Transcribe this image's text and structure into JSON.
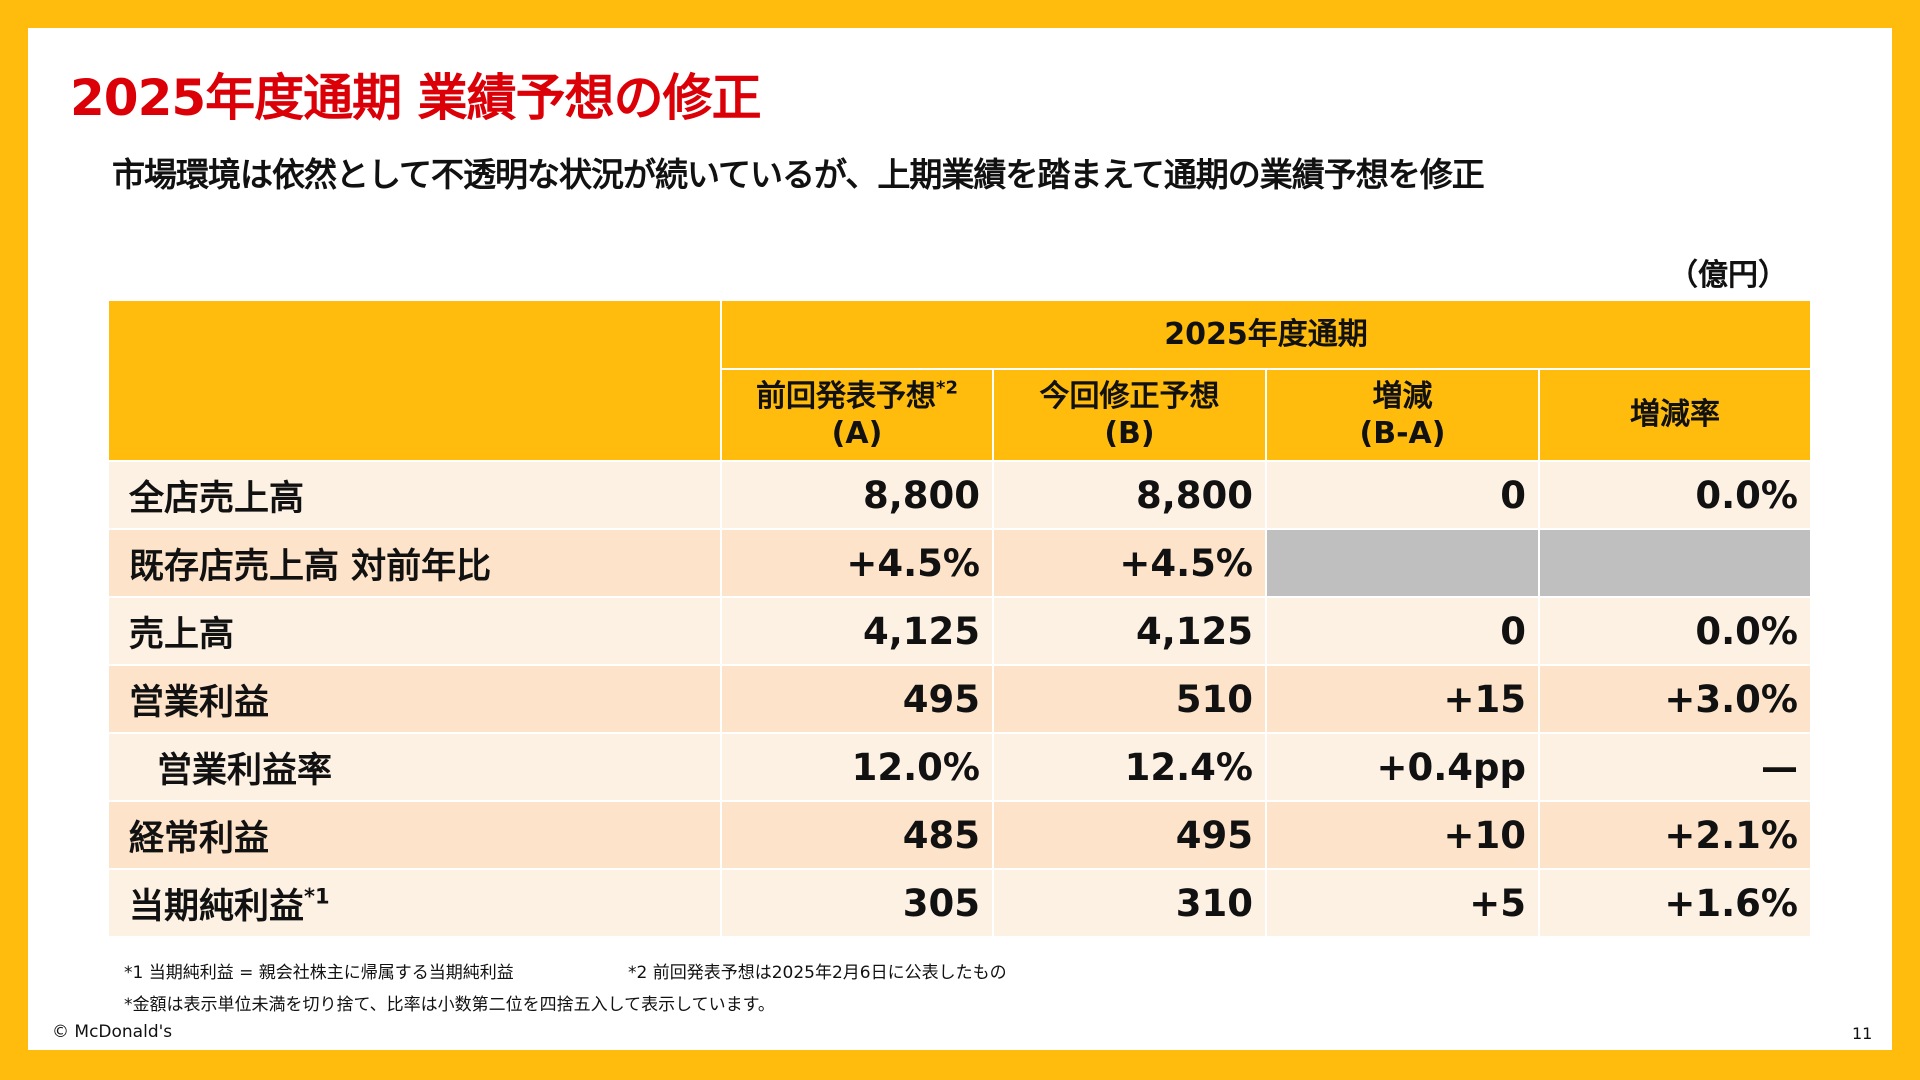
{
  "title": "2025年度通期 業績予想の修正",
  "subtitle": "市場環境は依然として不透明な状況が続いているが、上期業績を踏まえて通期の業績予想を修正",
  "unit": "（億円）",
  "table": {
    "group_header": "2025年度通期",
    "columns": [
      {
        "line1": "前回発表予想",
        "sup": "*2",
        "line2": "(A)"
      },
      {
        "line1": "今回修正予想",
        "sup": "",
        "line2": "(B)"
      },
      {
        "line1": "増減",
        "sup": "",
        "line2": "(B-A)"
      },
      {
        "line1": "増減率",
        "sup": "",
        "line2": ""
      }
    ],
    "rows": [
      {
        "label": "全店売上高",
        "sup": "",
        "a": "8,800",
        "b": "8,800",
        "diff": "0",
        "rate": "0.0%"
      },
      {
        "label": "既存店売上高 対前年比",
        "sup": "",
        "a": "+4.5%",
        "b": "+4.5%",
        "diff": "",
        "rate": ""
      },
      {
        "label": "売上高",
        "sup": "",
        "a": "4,125",
        "b": "4,125",
        "diff": "0",
        "rate": "0.0%"
      },
      {
        "label": "営業利益",
        "sup": "",
        "a": "495",
        "b": "510",
        "diff": "+15",
        "rate": "+3.0%"
      },
      {
        "label": "営業利益率",
        "sup": "",
        "a": "12.0%",
        "b": "12.4%",
        "diff": "+0.4pp",
        "rate": "—"
      },
      {
        "label": "経常利益",
        "sup": "",
        "a": "485",
        "b": "495",
        "diff": "+10",
        "rate": "+2.1%"
      },
      {
        "label": "当期純利益",
        "sup": "*1",
        "a": "305",
        "b": "310",
        "diff": "+5",
        "rate": "+1.6%"
      }
    ]
  },
  "footnotes": {
    "note1": "*1  当期純利益 = 親会社株主に帰属する当期純利益",
    "note2": "*2  前回発表予想は2025年2月6日に公表したもの",
    "note3": "*金額は表示単位未満を切り捨て、比率は小数第二位を四捨五入して表示しています。"
  },
  "copyright": "© McDonald's",
  "page_number": "11",
  "colors": {
    "frame": "#ffbc0d",
    "title": "#db0007",
    "header": "#ffbc0d",
    "row_light": "#fdf1e4",
    "row_dark": "#fce3ca",
    "na_cell": "#bfbfbf"
  }
}
